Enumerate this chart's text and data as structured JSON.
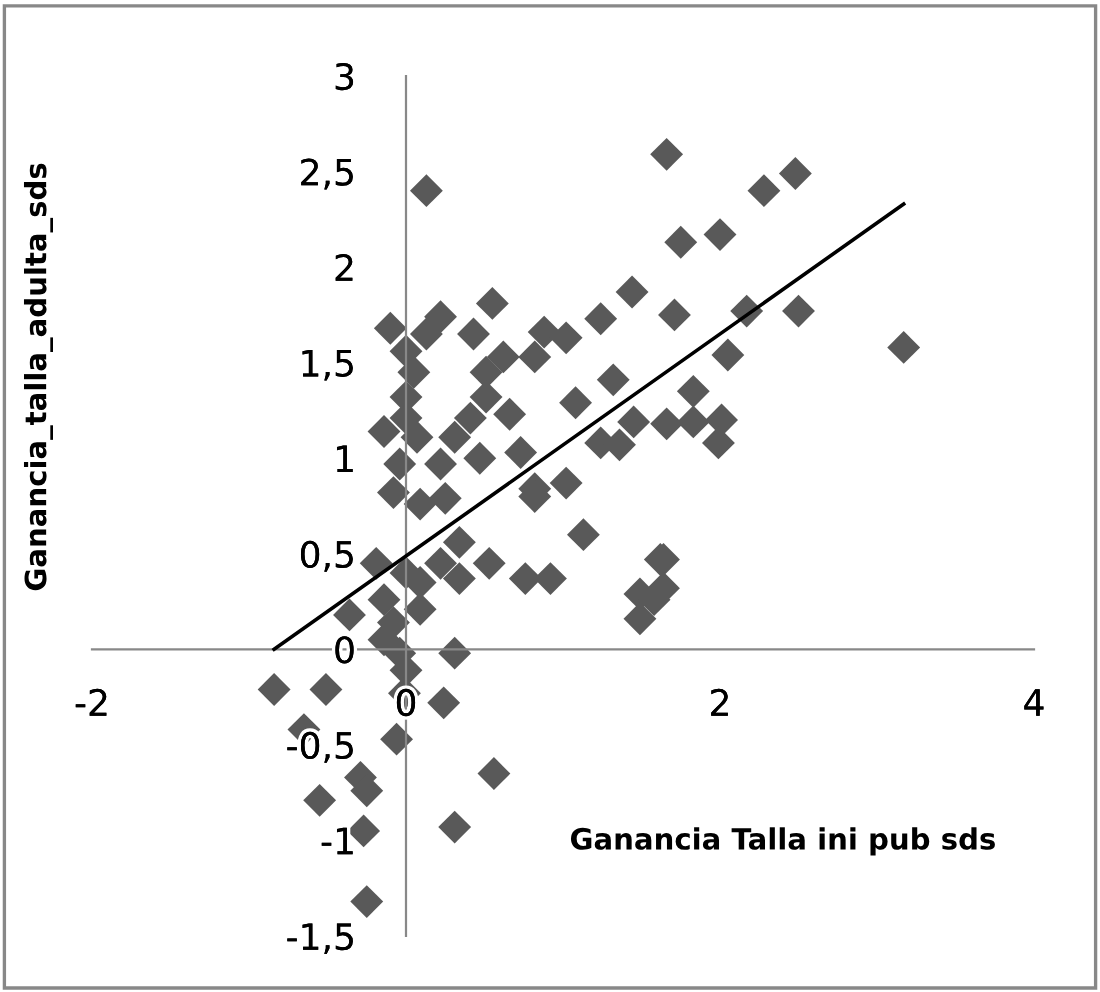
{
  "chart_data": {
    "type": "scatter",
    "xlabel": "Ganancia Talla ini pub sds",
    "ylabel": "Ganancia_talla_adulta_sds",
    "xlim": [
      -2,
      4
    ],
    "ylim": [
      -1.5,
      3
    ],
    "xticks": [
      -2,
      0,
      2,
      4
    ],
    "yticks": [
      {
        "value": -1.5,
        "label": "-1,5"
      },
      {
        "value": -1,
        "label": "-1"
      },
      {
        "value": -0.5,
        "label": "-0,5"
      },
      {
        "value": 0,
        "label": "0"
      },
      {
        "value": 0.5,
        "label": "0,5"
      },
      {
        "value": 1,
        "label": "1"
      },
      {
        "value": 1.5,
        "label": "1,5"
      },
      {
        "value": 2,
        "label": "2"
      },
      {
        "value": 2.5,
        "label": "2,5"
      },
      {
        "value": 3,
        "label": "3"
      }
    ],
    "grid": false,
    "legend": false,
    "marker": "diamond",
    "series": [
      {
        "color": "#595959",
        "x": [
          1.66,
          2.28,
          2.48,
          1.75,
          2.0,
          1.71,
          2.17,
          2.5,
          3.17,
          2.05,
          1.83,
          1.66,
          1.83,
          2.01,
          1.99,
          1.64,
          1.64,
          0.13,
          1.44,
          1.24,
          1.32,
          1.08,
          1.45,
          1.24,
          1.36,
          0.55,
          0.43,
          0.22,
          0.13,
          -0.1,
          0.0,
          0.88,
          1.02,
          0.82,
          0.62,
          0.51,
          0.05,
          0.0,
          0.51,
          0.41,
          0.66,
          0.0,
          -0.14,
          0.07,
          0.31,
          0.73,
          0.47,
          0.22,
          -0.04,
          1.02,
          0.82,
          -0.08,
          0.09,
          0.25,
          0.82,
          1.13,
          1.62,
          1.49,
          1.58,
          1.49,
          -0.19,
          0.0,
          0.34,
          0.22,
          0.53,
          0.76,
          0.92,
          0.34,
          0.09,
          -0.14,
          0.09,
          -0.36,
          -0.08,
          -0.14,
          -0.04,
          0.31,
          0.0,
          -0.84,
          -0.51,
          -0.01,
          0.24,
          -0.65,
          -0.06,
          0.56,
          -0.29,
          -0.25,
          -0.55,
          -0.27,
          0.31,
          -0.25
        ],
        "values": [
          2.59,
          2.4,
          2.49,
          2.13,
          2.17,
          1.75,
          1.77,
          1.77,
          1.58,
          1.54,
          1.35,
          1.18,
          1.19,
          1.2,
          1.08,
          0.47,
          0.32,
          2.4,
          1.87,
          1.73,
          1.41,
          1.29,
          1.19,
          1.08,
          1.07,
          1.81,
          1.65,
          1.74,
          1.65,
          1.68,
          1.56,
          1.66,
          1.63,
          1.53,
          1.53,
          1.45,
          1.45,
          1.32,
          1.32,
          1.21,
          1.23,
          1.21,
          1.14,
          1.11,
          1.11,
          1.03,
          1.0,
          0.97,
          0.97,
          0.87,
          0.84,
          0.82,
          0.76,
          0.79,
          0.8,
          0.6,
          0.47,
          0.29,
          0.26,
          0.16,
          0.45,
          0.4,
          0.56,
          0.45,
          0.45,
          0.37,
          0.37,
          0.37,
          0.35,
          0.26,
          0.21,
          0.18,
          0.14,
          0.05,
          -0.02,
          -0.02,
          -0.11,
          -0.21,
          -0.21,
          -0.23,
          -0.28,
          -0.42,
          -0.47,
          -0.65,
          -0.67,
          -0.74,
          -0.79,
          -0.95,
          -0.93,
          -1.32
        ]
      },
      {
        "type": "line",
        "color": "#000000",
        "line_style": "solid",
        "marker": "none",
        "x": [
          -0.84,
          3.17
        ],
        "values": [
          0,
          2.33
        ]
      }
    ]
  }
}
